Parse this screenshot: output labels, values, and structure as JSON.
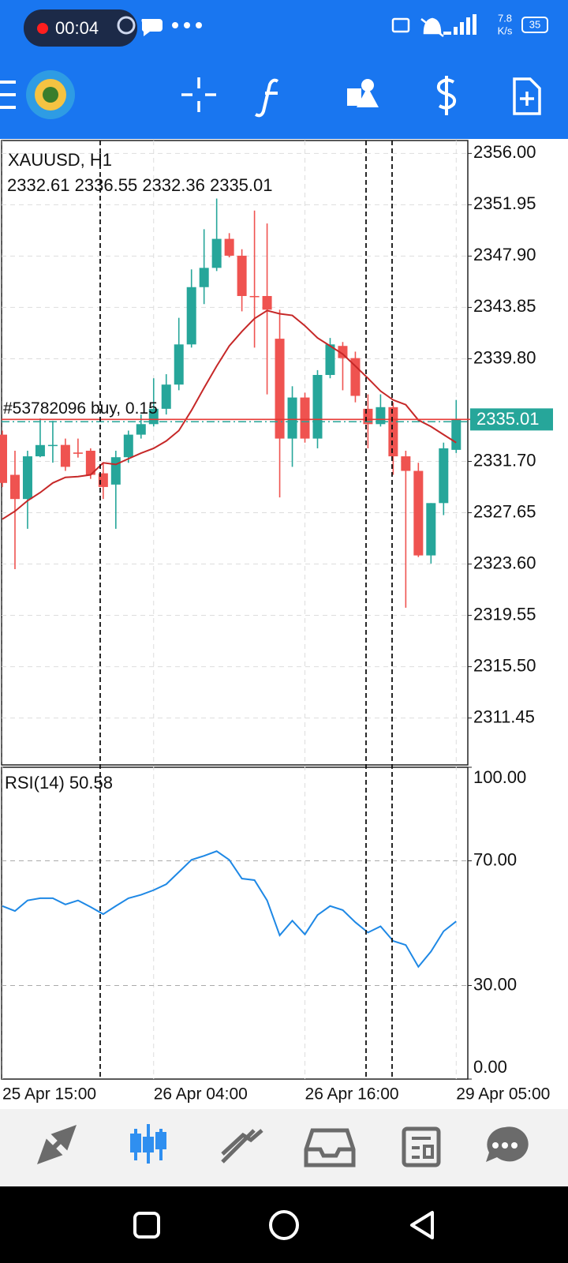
{
  "status_bar": {
    "recording_time": "00:04",
    "network_speed": "7.8",
    "network_unit": "K/s",
    "battery": "35"
  },
  "chart_data": [
    {
      "type": "candlestick",
      "title": "XAUUSD, H1",
      "categories": [
        "25 Apr 15:00",
        null,
        null,
        null,
        null,
        null,
        null,
        null,
        null,
        null,
        null,
        null,
        "26 Apr 04:00",
        null,
        null,
        null,
        null,
        null,
        null,
        null,
        null,
        null,
        null,
        null,
        "26 Apr 16:00",
        null,
        null,
        null,
        null,
        null,
        null,
        null,
        null,
        null,
        null,
        null,
        "29 Apr 05:00"
      ],
      "open": [
        2333.81,
        2330.64,
        2328.73,
        2332.1,
        2333.0,
        2333.0,
        2332.4,
        2332.54,
        2330.76,
        2329.87,
        2332.03,
        2333.81,
        2334.64,
        2335.85,
        2337.76,
        2340.93,
        2345.45,
        2346.97,
        2349.26,
        2347.93,
        2344.75,
        2344.75,
        2341.38,
        2333.5,
        2336.74,
        2333.5,
        2338.52,
        2340.81,
        2339.85,
        2335.85,
        2334.64,
        2335.98,
        2332.1,
        2330.95,
        2324.28,
        2328.41,
        2332.61
      ],
      "high": [
        2334.13,
        2332.54,
        2332.54,
        2335.09,
        2334.9,
        2333.5,
        2333.5,
        2332.73,
        2331.59,
        2332.54,
        2334.13,
        2335.4,
        2338.26,
        2338.58,
        2343.03,
        2346.85,
        2350.02,
        2352.44,
        2349.71,
        2348.44,
        2351.49,
        2350.47,
        2343.67,
        2337.63,
        2337.12,
        2338.9,
        2341.44,
        2341.12,
        2340.36,
        2336.99,
        2336.99,
        2336.36,
        2332.54,
        2331.59,
        2328.41,
        2333.18,
        2336.55
      ],
      "low": [
        2329.68,
        2323.2,
        2326.38,
        2332.03,
        2331.6,
        2330.95,
        2332.0,
        2330.32,
        2328.73,
        2326.38,
        2331.59,
        2333.5,
        2334.45,
        2335.4,
        2337.31,
        2340.68,
        2344.11,
        2346.72,
        2347.8,
        2343.54,
        2340.68,
        2336.99,
        2328.86,
        2331.27,
        2333.18,
        2332.73,
        2338.26,
        2337.31,
        2336.36,
        2332.73,
        2334.45,
        2330.64,
        2320.15,
        2324.15,
        2323.64,
        2327.46,
        2332.36
      ],
      "close": [
        2330.0,
        2328.73,
        2332.1,
        2332.99,
        2333.0,
        2331.27,
        2332.3,
        2330.64,
        2329.68,
        2332.03,
        2333.81,
        2334.64,
        2335.85,
        2337.76,
        2340.93,
        2345.45,
        2346.97,
        2349.26,
        2347.93,
        2344.75,
        2344.7,
        2343.67,
        2333.5,
        2336.74,
        2333.5,
        2338.52,
        2340.93,
        2339.85,
        2336.87,
        2334.64,
        2335.98,
        2332.1,
        2330.95,
        2324.28,
        2328.41,
        2332.73,
        2335.01
      ],
      "up_color": "#26a69a",
      "down_color": "#ef5350",
      "ma_line": {
        "color": "#c62828",
        "values": [
          2327.14,
          2327.77,
          2328.6,
          2329.24,
          2330.0,
          2330.44,
          2330.5,
          2330.64,
          2331.59,
          2331.46,
          2331.91,
          2332.35,
          2332.73,
          2333.31,
          2334.13,
          2335.72,
          2337.5,
          2339.22,
          2340.81,
          2341.95,
          2342.97,
          2343.6,
          2343.35,
          2343.22,
          2342.4,
          2341.44,
          2340.81,
          2340.17,
          2339.22,
          2338.26,
          2337.25,
          2336.55,
          2336.17,
          2334.96,
          2334.45,
          2333.81,
          2333.18
        ]
      },
      "order": {
        "label": "#53782096 buy, 0.15",
        "value": 2334.83,
        "color": "#26a69a"
      },
      "price_line_color": "#e53935",
      "ylim": [
        2307.75,
        2357.02
      ],
      "yticks": [
        {
          "value": 2356.0,
          "label": "2356.00"
        },
        2351.95,
        {
          "value": 2347.9,
          "label": "2347.90"
        },
        2343.85,
        {
          "value": 2339.8,
          "label": "2339.80"
        },
        {
          "value": 2331.7,
          "label": "2331.70"
        },
        2327.65,
        {
          "value": 2323.6,
          "label": "2323.60"
        },
        2319.55,
        {
          "value": 2315.5,
          "label": "2315.50"
        },
        2311.45
      ],
      "grid": true
    },
    {
      "type": "line",
      "title": "RSI(14)",
      "color": "#1e88e5",
      "values": [
        55.5,
        53.9,
        57.3,
        58.0,
        58.0,
        56.0,
        57.3,
        55.2,
        52.9,
        55.5,
        58.0,
        59.1,
        60.6,
        62.5,
        66.4,
        70.3,
        71.6,
        73.1,
        70.3,
        64.3,
        63.8,
        57.3,
        46.1,
        50.8,
        46.4,
        52.6,
        55.5,
        54.2,
        50.3,
        47.0,
        49.0,
        44.3,
        43.0,
        36.0,
        40.9,
        47.4,
        50.58
      ],
      "ylim": [
        0,
        100
      ],
      "yticks": [
        {
          "value": 100,
          "label": "100.00"
        },
        {
          "value": 70,
          "label": "70.00"
        },
        {
          "value": 30,
          "label": "30.00"
        },
        {
          "value": 0,
          "label": "0.00"
        }
      ],
      "grid": true
    }
  ]
}
